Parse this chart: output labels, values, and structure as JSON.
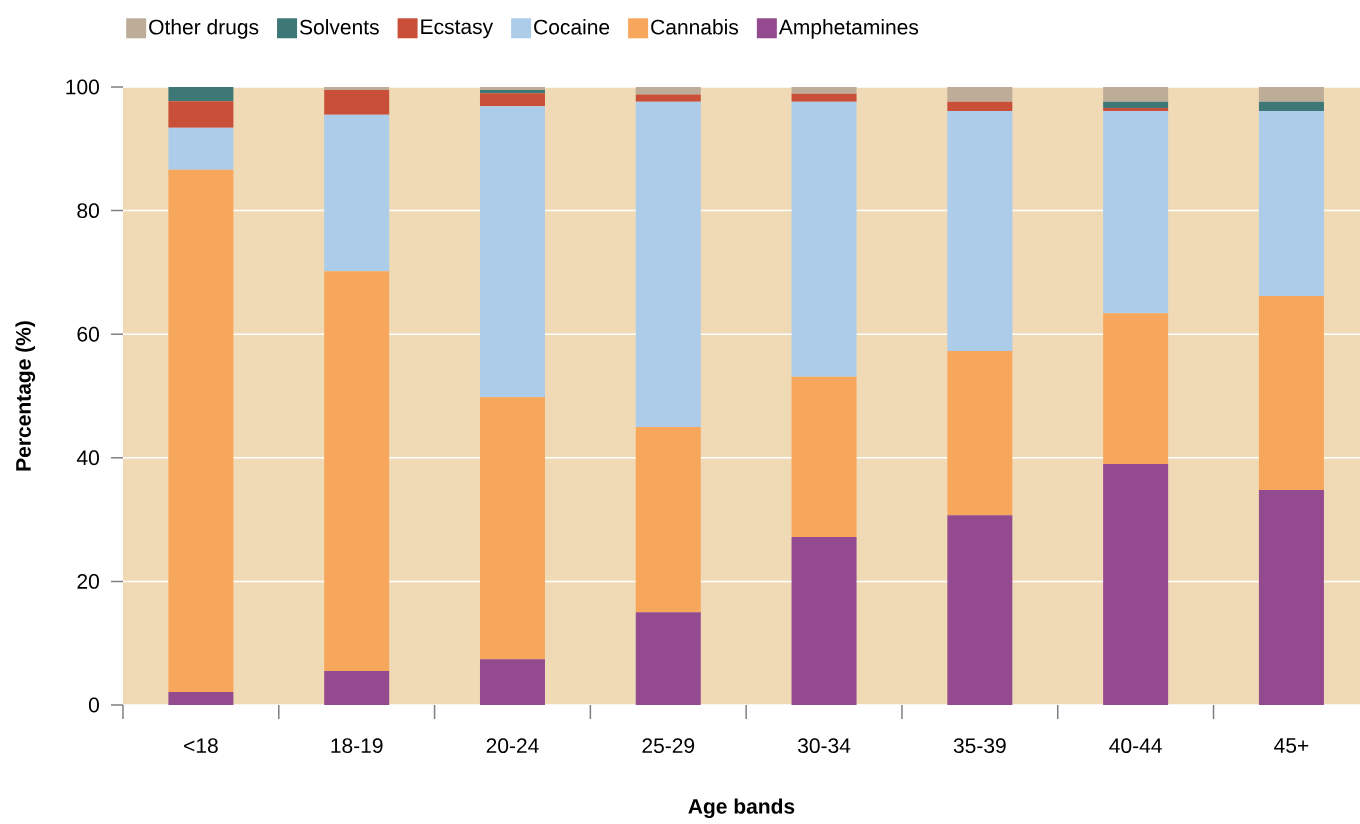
{
  "chart_data": {
    "type": "bar",
    "stacked": true,
    "xlabel": "Age bands",
    "ylabel": "Percentage (%)",
    "categories": [
      "<18",
      "18-19",
      "20-24",
      "25-29",
      "30-34",
      "35-39",
      "40-44",
      "45+"
    ],
    "series": [
      {
        "name": "Amphetamines",
        "color": "#934a8f",
        "values": [
          2.1,
          5.5,
          7.4,
          15.0,
          27.2,
          30.7,
          39.0,
          34.8
        ]
      },
      {
        "name": "Cannabis",
        "color": "#f7a75c",
        "values": [
          84.5,
          64.7,
          42.4,
          30.0,
          25.9,
          26.6,
          24.4,
          31.4
        ]
      },
      {
        "name": "Cocaine",
        "color": "#acccea",
        "values": [
          6.8,
          25.3,
          47.1,
          52.6,
          44.5,
          38.8,
          32.7,
          29.9
        ]
      },
      {
        "name": "Ecstasy",
        "color": "#c94f39",
        "values": [
          4.3,
          4.0,
          2.1,
          1.2,
          1.3,
          1.5,
          0.5,
          0
        ]
      },
      {
        "name": "Solvents",
        "color": "#3d7776",
        "values": [
          2.3,
          0,
          0.5,
          0,
          0,
          0,
          1.0,
          1.5
        ]
      },
      {
        "name": "Other drugs",
        "color": "#bcac98",
        "values": [
          0,
          0.5,
          0.5,
          1.2,
          1.1,
          2.4,
          2.4,
          2.4
        ]
      }
    ],
    "ylim": [
      0,
      100
    ],
    "yticks": [
      0,
      20,
      40,
      60,
      80,
      100
    ],
    "grid": "y",
    "legend": "top"
  }
}
